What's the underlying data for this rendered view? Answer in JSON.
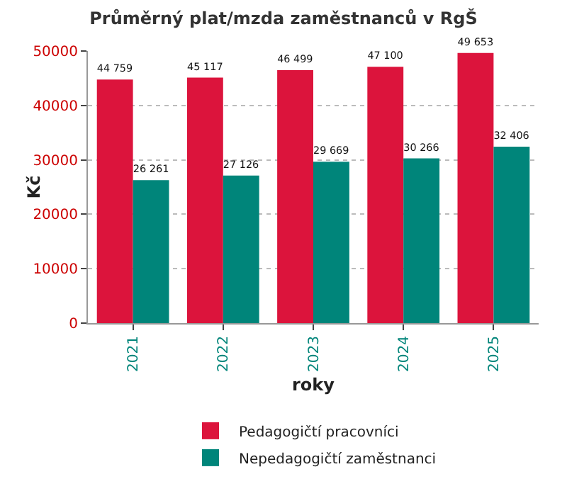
{
  "chart_data": {
    "type": "bar",
    "title": "Průměrný plat/mzda zaměstnanců v RgŠ",
    "xlabel": "roky",
    "ylabel": "Kč",
    "categories": [
      "2021",
      "2022",
      "2023",
      "2024",
      "2025"
    ],
    "series": [
      {
        "name": "Pedagogičtí pracovníci",
        "color": "#dc143c",
        "values": [
          44759,
          45117,
          46499,
          47100,
          49653
        ],
        "value_labels": [
          "44 759",
          "45 117",
          "46 499",
          "47 100",
          "49 653"
        ]
      },
      {
        "name": "Nepedagogičtí zaměstnanci",
        "color": "#00857a",
        "values": [
          26261,
          27126,
          29669,
          30266,
          32406
        ],
        "value_labels": [
          "26 261",
          "27 126",
          "29 669",
          "30 266",
          "32 406"
        ]
      }
    ],
    "ylim": [
      0,
      50000
    ],
    "yticks": [
      0,
      10000,
      20000,
      30000,
      40000,
      50000
    ],
    "grid": "y",
    "legend": "bottom"
  }
}
